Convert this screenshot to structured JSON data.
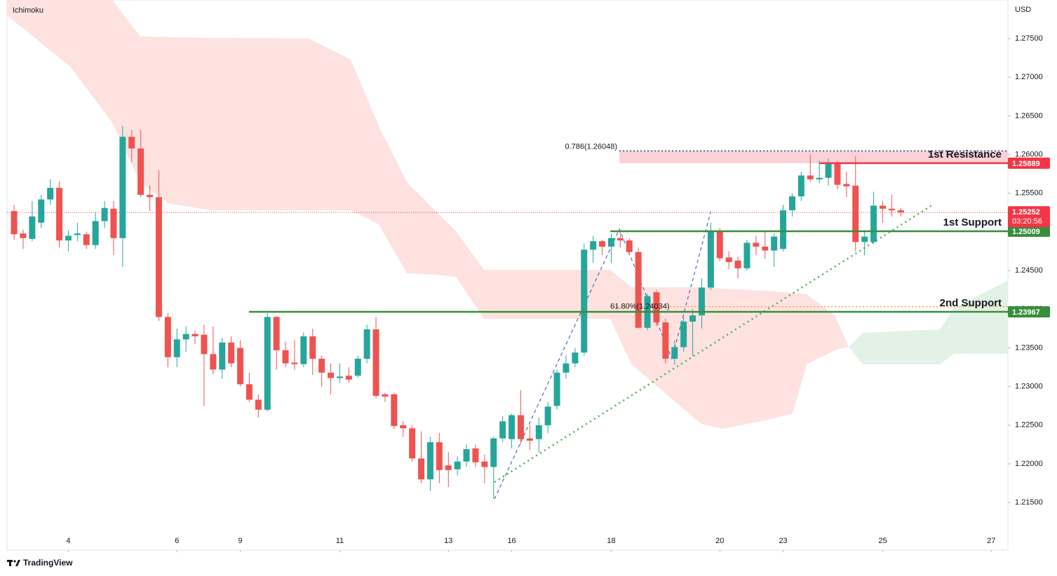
{
  "chart_data": {
    "type": "candlestick",
    "title": "Ichimoku",
    "currency": "USD",
    "brand": "TradingView",
    "ylim": [
      1.20885,
      1.28
    ],
    "xlim": [
      -0.78,
      109.84
    ],
    "yticks": [
      {
        "value": 1.215,
        "label": "1.21500"
      },
      {
        "value": 1.22,
        "label": "1.22000"
      },
      {
        "value": 1.225,
        "label": "1.22500"
      },
      {
        "value": 1.23,
        "label": "1.23000"
      },
      {
        "value": 1.235,
        "label": "1.23500"
      },
      {
        "value": 1.24,
        "label": "1.24000"
      },
      {
        "value": 1.245,
        "label": "1.24500"
      },
      {
        "value": 1.25,
        "label": "1.25000"
      },
      {
        "value": 1.255,
        "label": "1.25500"
      },
      {
        "value": 1.26,
        "label": "1.26000"
      },
      {
        "value": 1.265,
        "label": "1.26500"
      },
      {
        "value": 1.27,
        "label": "1.27000"
      },
      {
        "value": 1.275,
        "label": "1.27500"
      }
    ],
    "xticks": [
      {
        "value": 6,
        "label": "4"
      },
      {
        "value": 18,
        "label": "6"
      },
      {
        "value": 25,
        "label": "9"
      },
      {
        "value": 36,
        "label": "11"
      },
      {
        "value": 48,
        "label": "13"
      },
      {
        "value": 55,
        "label": "16"
      },
      {
        "value": 66,
        "label": "18"
      },
      {
        "value": 78,
        "label": "20"
      },
      {
        "value": 85,
        "label": "23"
      },
      {
        "value": 96,
        "label": "25"
      },
      {
        "value": 108,
        "label": "27"
      }
    ],
    "up_color": "#26a69a",
    "down_color": "#ef5350",
    "open": [
      1.2527,
      1.2498,
      1.2491,
      1.2512,
      1.2542,
      1.2557,
      1.2489,
      1.2496,
      1.2497,
      1.2483,
      1.2514,
      1.253,
      1.2492,
      1.2623,
      1.2608,
      1.2548,
      1.2545,
      1.239,
      1.2338,
      1.2361,
      1.2368,
      1.2367,
      1.2342,
      1.2322,
      1.2357,
      1.235,
      1.2303,
      1.2283,
      1.227,
      1.239,
      1.2347,
      1.2331,
      1.2329,
      1.2365,
      1.2336,
      1.2318,
      1.2311,
      1.2314,
      1.2314,
      1.2336,
      1.2374,
      1.229,
      1.229,
      1.225,
      1.2246,
      1.2207,
      1.218,
      1.2228,
      1.2198,
      1.2193,
      1.2203,
      1.222,
      1.2203,
      1.2196,
      1.2233,
      1.2232,
      1.2263,
      1.2233,
      1.2232,
      1.225,
      1.2275,
      1.2318,
      1.233,
      1.2344,
      1.2477,
      1.2488,
      1.2481,
      1.2492,
      1.2489,
      1.2474,
      1.2376,
      1.2422,
      1.2383,
      1.2336,
      1.2351,
      1.2384,
      1.2392,
      1.2428,
      1.25,
      1.2467,
      1.2463,
      1.2453,
      1.2486,
      1.2481,
      1.2476,
      1.2478,
      1.2528,
      1.2546,
      1.2573,
      1.2568,
      1.257,
      1.259,
      1.2562,
      1.256,
      1.2487,
      1.2487,
      1.2534,
      1.253,
      1.2528
    ],
    "high": [
      1.2535,
      1.2503,
      1.254,
      1.2548,
      1.2568,
      1.2565,
      1.2502,
      1.2512,
      1.25,
      1.2525,
      1.254,
      1.254,
      1.2637,
      1.2632,
      1.2632,
      1.256,
      1.258,
      1.2395,
      1.2375,
      1.2378,
      1.2372,
      1.238,
      1.2378,
      1.2363,
      1.2365,
      1.236,
      1.2318,
      1.229,
      1.2395,
      1.2392,
      1.2358,
      1.236,
      1.237,
      1.2375,
      1.234,
      1.233,
      1.233,
      1.2325,
      1.234,
      1.238,
      1.239,
      1.2292,
      1.2292,
      1.2255,
      1.225,
      1.2242,
      1.2235,
      1.224,
      1.2215,
      1.221,
      1.2225,
      1.2225,
      1.2212,
      1.2235,
      1.2262,
      1.2265,
      1.2295,
      1.225,
      1.226,
      1.228,
      1.2322,
      1.234,
      1.235,
      1.2485,
      1.2495,
      1.249,
      1.2498,
      1.25,
      1.2492,
      1.248,
      1.242,
      1.2425,
      1.2388,
      1.236,
      1.239,
      1.24,
      1.244,
      1.2512,
      1.2505,
      1.2475,
      1.2468,
      1.249,
      1.2495,
      1.25,
      1.2498,
      1.2535,
      1.255,
      1.2578,
      1.26,
      1.2592,
      1.2595,
      1.2592,
      1.2578,
      1.2598,
      1.25,
      1.2552,
      1.254,
      1.2548,
      1.2531
    ],
    "low": [
      1.249,
      1.2478,
      1.2488,
      1.2505,
      1.2535,
      1.248,
      1.2475,
      1.2488,
      1.2478,
      1.2478,
      1.2505,
      1.247,
      1.2455,
      1.259,
      1.2545,
      1.2527,
      1.2385,
      1.2325,
      1.2325,
      1.2345,
      1.2355,
      1.2275,
      1.2316,
      1.231,
      1.2325,
      1.23,
      1.228,
      1.226,
      1.2268,
      1.2322,
      1.2325,
      1.2322,
      1.2325,
      1.2315,
      1.23,
      1.229,
      1.2305,
      1.2305,
      1.2312,
      1.233,
      1.2285,
      1.228,
      1.2245,
      1.2235,
      1.2203,
      1.2175,
      1.2165,
      1.2175,
      1.217,
      1.2185,
      1.2196,
      1.2196,
      1.2175,
      1.2155,
      1.2228,
      1.222,
      1.2225,
      1.2218,
      1.2215,
      1.224,
      1.227,
      1.231,
      1.2325,
      1.234,
      1.246,
      1.247,
      1.246,
      1.248,
      1.247,
      1.2375,
      1.2373,
      1.2378,
      1.233,
      1.2328,
      1.2345,
      1.234,
      1.2375,
      1.2425,
      1.2462,
      1.2452,
      1.244,
      1.245,
      1.247,
      1.2465,
      1.2455,
      1.2475,
      1.252,
      1.254,
      1.2565,
      1.2563,
      1.256,
      1.2555,
      1.2545,
      1.2475,
      1.247,
      1.2485,
      1.2512,
      1.252,
      1.252
    ],
    "close": [
      1.2497,
      1.2492,
      1.252,
      1.2542,
      1.2557,
      1.2489,
      1.2495,
      1.2498,
      1.2483,
      1.2514,
      1.2531,
      1.2492,
      1.2623,
      1.2608,
      1.2548,
      1.2545,
      1.239,
      1.2338,
      1.2361,
      1.2368,
      1.2365,
      1.2342,
      1.2322,
      1.2357,
      1.233,
      1.2303,
      1.2283,
      1.227,
      1.239,
      1.2347,
      1.233,
      1.2329,
      1.2365,
      1.2336,
      1.2318,
      1.2311,
      1.2313,
      1.2309,
      1.2336,
      1.2374,
      1.2288,
      1.2287,
      1.2249,
      1.2246,
      1.2207,
      1.218,
      1.2228,
      1.2192,
      1.2192,
      1.2203,
      1.2219,
      1.2202,
      1.2196,
      1.2233,
      1.2255,
      1.2263,
      1.2232,
      1.223,
      1.225,
      1.2274,
      1.2318,
      1.233,
      1.2344,
      1.2477,
      1.2488,
      1.2481,
      1.2492,
      1.2489,
      1.2474,
      1.2376,
      1.2417,
      1.2383,
      1.2336,
      1.2351,
      1.2384,
      1.2392,
      1.2428,
      1.25,
      1.2466,
      1.2461,
      1.2453,
      1.2486,
      1.2481,
      1.2476,
      1.2494,
      1.2528,
      1.2546,
      1.2573,
      1.2568,
      1.257,
      1.259,
      1.2561,
      1.2559,
      1.2487,
      1.2494,
      1.2534,
      1.253,
      1.2528,
      1.25252
    ],
    "cloud": {
      "x": [
        -0.78,
        6.2,
        10.85,
        13.95,
        17.05,
        21.7,
        32.56,
        37.21,
        40.31,
        43.41,
        46.51,
        48.84,
        51.94,
        65.89,
        68.22,
        75.97,
        78.29,
        82.95,
        86.05,
        87.6,
        90.7,
        92.25,
        93.8,
        102.33,
        103.88,
        109.84
      ],
      "span_a": [
        1.27801,
        1.27139,
        1.26414,
        1.25644,
        1.25372,
        1.25281,
        1.25281,
        1.25281,
        1.251,
        1.24465,
        1.24447,
        1.2442,
        1.23876,
        1.23876,
        1.23287,
        1.22516,
        1.22453,
        1.22562,
        1.22652,
        1.23287,
        1.23468,
        1.23514,
        1.23695,
        1.2374,
        1.24012,
        1.24375
      ],
      "span_b": [
        1.28,
        1.28,
        1.28,
        1.27529,
        1.2752,
        1.27511,
        1.27502,
        1.2723,
        1.26369,
        1.25644,
        1.25281,
        1.25009,
        1.24511,
        1.24511,
        1.24284,
        1.24284,
        1.24266,
        1.24239,
        1.24211,
        1.24193,
        1.23921,
        1.23514,
        1.23287,
        1.23287,
        1.23423,
        1.23423
      ],
      "bull_color": "#e3f2e6",
      "bear_color": "#fde2e0"
    },
    "levels": [
      {
        "name": "1st Resistance",
        "value": 1.25889,
        "color": "#f23645",
        "from": 89.0
      },
      {
        "name": "1st Support",
        "value": 1.25009,
        "color": "#388e3c",
        "from": 65.9
      },
      {
        "name": "2nd Support",
        "value": 1.23967,
        "color": "#388e3c",
        "from": 25.97
      }
    ],
    "fibs": [
      {
        "label": "0.786(1.26048)",
        "value": 1.26048,
        "color": "#1e3f8a",
        "from": 66.9
      },
      {
        "label": "61.80%(1.24034)",
        "value": 1.24034,
        "color": "#f0a030",
        "from": 65.9
      }
    ],
    "zone_color": "#f9c9cf",
    "last_price": {
      "value": 1.25252,
      "countdown": "03:20:56",
      "color": "#f23645"
    },
    "trendline": {
      "x": [
        53.1,
        101.55
      ],
      "y": [
        1.21764,
        1.25353
      ],
      "color": "#4caf50"
    },
    "fib_path": {
      "x": [
        53.1,
        66.9,
        72.7,
        77.0
      ],
      "y": [
        1.21547,
        1.25036,
        1.2336,
        1.25263
      ],
      "color": "#2f4fb0"
    }
  }
}
